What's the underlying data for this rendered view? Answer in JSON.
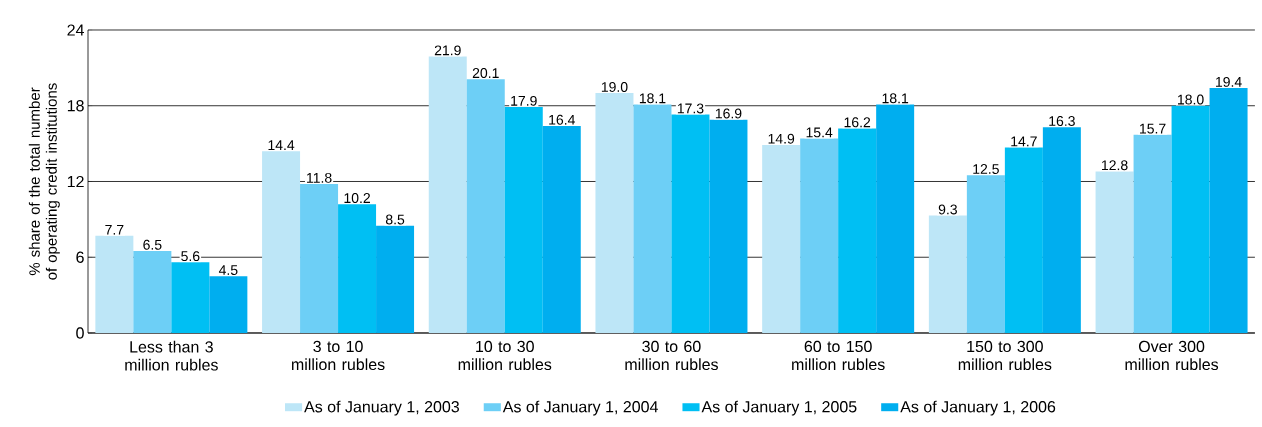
{
  "chart_data": {
    "type": "bar",
    "ylabel": "% share of the total number of operating credit institutions",
    "categories": [
      "Less than 3 million rubles",
      "3 to 10 million rubles",
      "10 to 30 million rubles",
      "30 to 60 million rubles",
      "60 to 150 million rubles",
      "150 to 300 million rubles",
      "Over 300 million rubles"
    ],
    "series": [
      {
        "name": "As of January 1, 2003",
        "color": "#bde6f7",
        "values": [
          7.7,
          14.4,
          21.9,
          19.0,
          14.9,
          9.3,
          12.8
        ],
        "value_labels": [
          "7.7",
          "14.4",
          "21.9",
          "19.0",
          "14.9",
          "9.3",
          "12.8"
        ]
      },
      {
        "name": "As of January 1, 2004",
        "color": "#6dcff6",
        "values": [
          6.5,
          11.8,
          20.1,
          18.1,
          15.4,
          12.5,
          15.7
        ],
        "value_labels": [
          "6.5",
          "11.8",
          "20.1",
          "18.1",
          "15.4",
          "12.5",
          "15.7"
        ]
      },
      {
        "name": "As of January 1, 2005",
        "color": "#00bff3",
        "values": [
          5.6,
          10.2,
          17.9,
          17.3,
          16.2,
          14.7,
          18.0
        ],
        "value_labels": [
          "5.6",
          "10.2",
          "17.9",
          "17.3",
          "16.2",
          "14.7",
          "18.0"
        ]
      },
      {
        "name": "As of January 1, 2006",
        "color": "#00aeef",
        "values": [
          4.5,
          8.5,
          16.4,
          16.9,
          18.1,
          16.3,
          19.4
        ],
        "value_labels": [
          "4.5",
          "8.5",
          "16.4",
          "16.9",
          "18.1",
          "16.3",
          "19.4"
        ]
      }
    ],
    "ylim": [
      0,
      24
    ],
    "yticks": [
      0,
      6,
      12,
      18,
      24
    ],
    "grid": "y",
    "legend": "bottom"
  }
}
